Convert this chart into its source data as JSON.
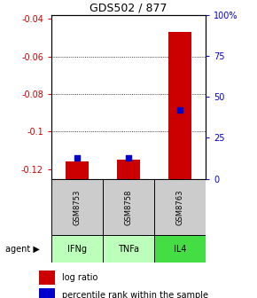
{
  "title": "GDS502 / 877",
  "samples": [
    "GSM8753",
    "GSM8758",
    "GSM8763"
  ],
  "agents": [
    "IFNg",
    "TNFa",
    "IL4"
  ],
  "log_ratios": [
    -0.116,
    -0.115,
    -0.047
  ],
  "percentile_ranks": [
    13,
    13,
    42
  ],
  "ylim_left": [
    -0.125,
    -0.038
  ],
  "ylim_right": [
    0,
    100
  ],
  "yticks_left": [
    -0.12,
    -0.1,
    -0.08,
    -0.06,
    -0.04
  ],
  "yticks_right": [
    0,
    25,
    50,
    75,
    100
  ],
  "bar_color": "#cc0000",
  "marker_color": "#0000cc",
  "agent_colors": [
    "#bbffbb",
    "#bbffbb",
    "#44dd44"
  ],
  "sample_bg": "#cccccc",
  "grid_color": "#555555",
  "left_tick_color": "#cc0000",
  "right_tick_color": "#0000cc",
  "bar_width": 0.45,
  "fig_width": 2.9,
  "fig_height": 3.36,
  "dpi": 100
}
